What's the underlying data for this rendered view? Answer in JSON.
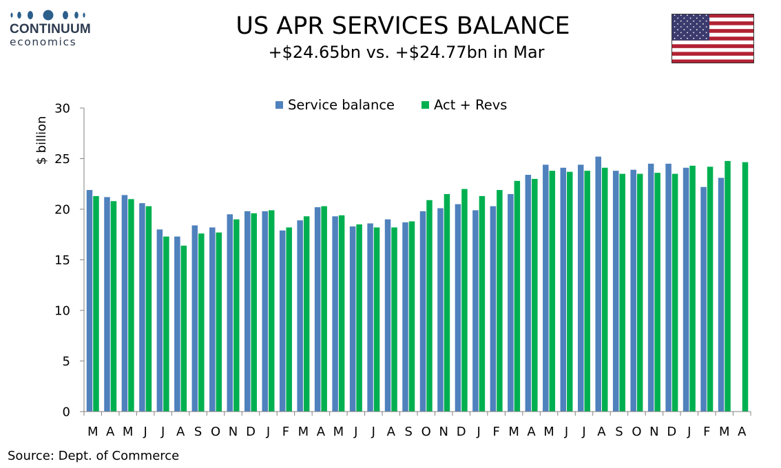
{
  "logo": {
    "name": "CONTINUUM",
    "sub": "economics"
  },
  "title": "US APR SERVICES BALANCE",
  "subtitle": "+$24.65bn vs. +$24.77bn in Mar",
  "source": "Source: Dept. of Commerce",
  "colors": {
    "series1": "#4f81bd",
    "series2": "#00b050",
    "axis": "#808080",
    "logo": "#2d5f8b"
  },
  "chart_data": {
    "type": "bar",
    "title": "",
    "xlabel": "",
    "ylabel": "$ billion",
    "ylim": [
      0,
      30
    ],
    "yticks": [
      0,
      5,
      10,
      15,
      20,
      25,
      30
    ],
    "grid": false,
    "legend_position": "top-center",
    "categories": [
      "M",
      "A",
      "M",
      "J",
      "J",
      "A",
      "S",
      "O",
      "N",
      "D",
      "J",
      "F",
      "M",
      "A",
      "M",
      "J",
      "J",
      "A",
      "S",
      "O",
      "N",
      "D",
      "J",
      "F",
      "M",
      "A",
      "M",
      "J",
      "J",
      "A",
      "S",
      "O",
      "N",
      "D",
      "J",
      "F",
      "M",
      "A"
    ],
    "series": [
      {
        "name": "Service balance",
        "values": [
          21.9,
          21.2,
          21.4,
          20.6,
          18.0,
          17.3,
          18.4,
          18.2,
          19.5,
          19.8,
          19.8,
          17.9,
          18.9,
          20.2,
          19.3,
          18.3,
          18.6,
          19.0,
          18.7,
          19.8,
          20.1,
          20.5,
          19.9,
          20.3,
          21.5,
          23.4,
          24.4,
          24.1,
          24.4,
          25.2,
          23.8,
          23.9,
          24.5,
          24.5,
          24.1,
          22.2,
          23.1,
          null
        ]
      },
      {
        "name": "Act + Revs",
        "values": [
          21.3,
          20.8,
          21.0,
          20.3,
          17.3,
          16.4,
          17.6,
          17.7,
          19.0,
          19.6,
          19.9,
          18.2,
          19.3,
          20.3,
          19.4,
          18.5,
          18.2,
          18.2,
          18.8,
          20.9,
          21.5,
          22.0,
          21.3,
          21.9,
          22.8,
          23.0,
          23.8,
          23.7,
          23.8,
          24.1,
          23.5,
          23.5,
          23.6,
          23.5,
          24.3,
          24.2,
          24.77,
          24.65
        ]
      }
    ]
  }
}
